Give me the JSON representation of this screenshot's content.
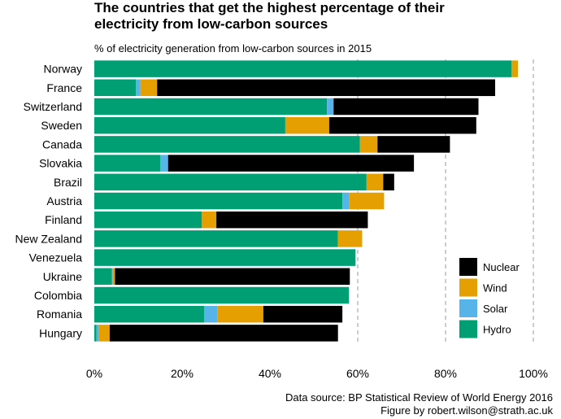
{
  "header": {
    "title_line1": "The countries that get the highest percentage of their",
    "title_line2": "electricity from low-carbon sources",
    "subtitle": "% of electricity generation from low-carbon sources in 2015"
  },
  "footer": {
    "line1": "Data source: BP Statistical Review of World Energy 2016",
    "line2": "Figure by robert.wilson@strath.ac.uk"
  },
  "colors": {
    "Hydro": "#009E73",
    "Solar": "#56B4E9",
    "Wind": "#E69F00",
    "Nuclear": "#000000"
  },
  "chart_data": {
    "type": "bar",
    "orientation": "horizontal",
    "stacked": true,
    "categories": [
      "Norway",
      "France",
      "Switzerland",
      "Sweden",
      "Canada",
      "Slovakia",
      "Brazil",
      "Austria",
      "Finland",
      "New Zealand",
      "Venezuela",
      "Ukraine",
      "Colombia",
      "Romania",
      "Hungary"
    ],
    "series": [
      {
        "name": "Hydro",
        "values": [
          95.0,
          9.5,
          53.0,
          43.5,
          60.5,
          15.0,
          62.0,
          56.5,
          24.5,
          55.5,
          59.5,
          4.0,
          58.0,
          25.0,
          0.5
        ]
      },
      {
        "name": "Solar",
        "values": [
          0.0,
          1.0,
          1.5,
          0.0,
          0.0,
          1.8,
          0.0,
          1.5,
          0.0,
          0.0,
          0.0,
          0.2,
          0.0,
          3.0,
          0.5
        ]
      },
      {
        "name": "Wind",
        "values": [
          1.5,
          3.8,
          0.0,
          10.0,
          4.0,
          0.0,
          3.8,
          8.0,
          3.3,
          5.5,
          0.0,
          0.5,
          0.0,
          10.5,
          2.5
        ]
      },
      {
        "name": "Nuclear",
        "values": [
          0.0,
          77.0,
          33.0,
          33.5,
          16.5,
          56.0,
          2.5,
          0.0,
          34.5,
          0.0,
          0.0,
          53.5,
          0.0,
          18.0,
          52.0
        ]
      }
    ],
    "xlim": [
      0,
      100
    ],
    "x_ticks": [
      "0%",
      "20%",
      "40%",
      "60%",
      "80%",
      "100%"
    ],
    "grid": "vertical dashed at 60%, 80%, 100%",
    "legend_order": [
      "Nuclear",
      "Wind",
      "Solar",
      "Hydro"
    ],
    "legend_position": "bottom-right"
  }
}
